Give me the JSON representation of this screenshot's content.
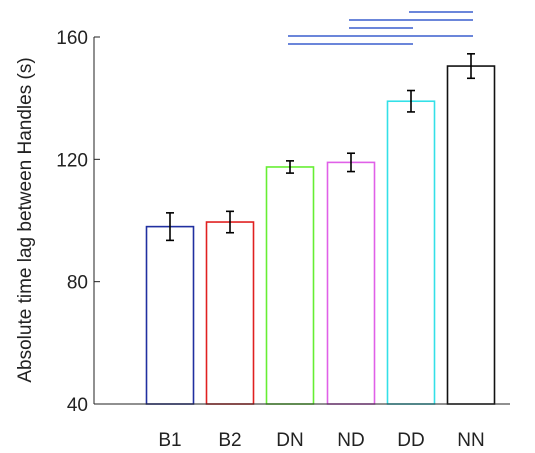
{
  "chart_data": {
    "type": "bar",
    "categories": [
      "B1",
      "B2",
      "DN",
      "ND",
      "DD",
      "NN"
    ],
    "values": [
      98,
      99.5,
      117.5,
      119,
      139,
      150.5
    ],
    "errors": [
      4.5,
      3.5,
      2,
      3,
      3.5,
      4
    ],
    "bar_colors": [
      "#2030a0",
      "#e02020",
      "#66ee33",
      "#e060e8",
      "#33e0e8",
      "#111111"
    ],
    "ylabel": "Absolute time  lag between Handles (s)",
    "xlabel": "",
    "ylim": [
      40,
      160
    ],
    "yticks": [
      40,
      80,
      120,
      160
    ],
    "ytick_labels": [
      "40",
      "80",
      "120",
      "160"
    ],
    "grid": false,
    "significance": {
      "color": "#3a5fcd",
      "pairs": [
        [
          "DN",
          "DD"
        ],
        [
          "DN",
          "NN"
        ],
        [
          "ND",
          "DD"
        ],
        [
          "ND",
          "NN"
        ],
        [
          "DD",
          "NN"
        ]
      ]
    }
  }
}
